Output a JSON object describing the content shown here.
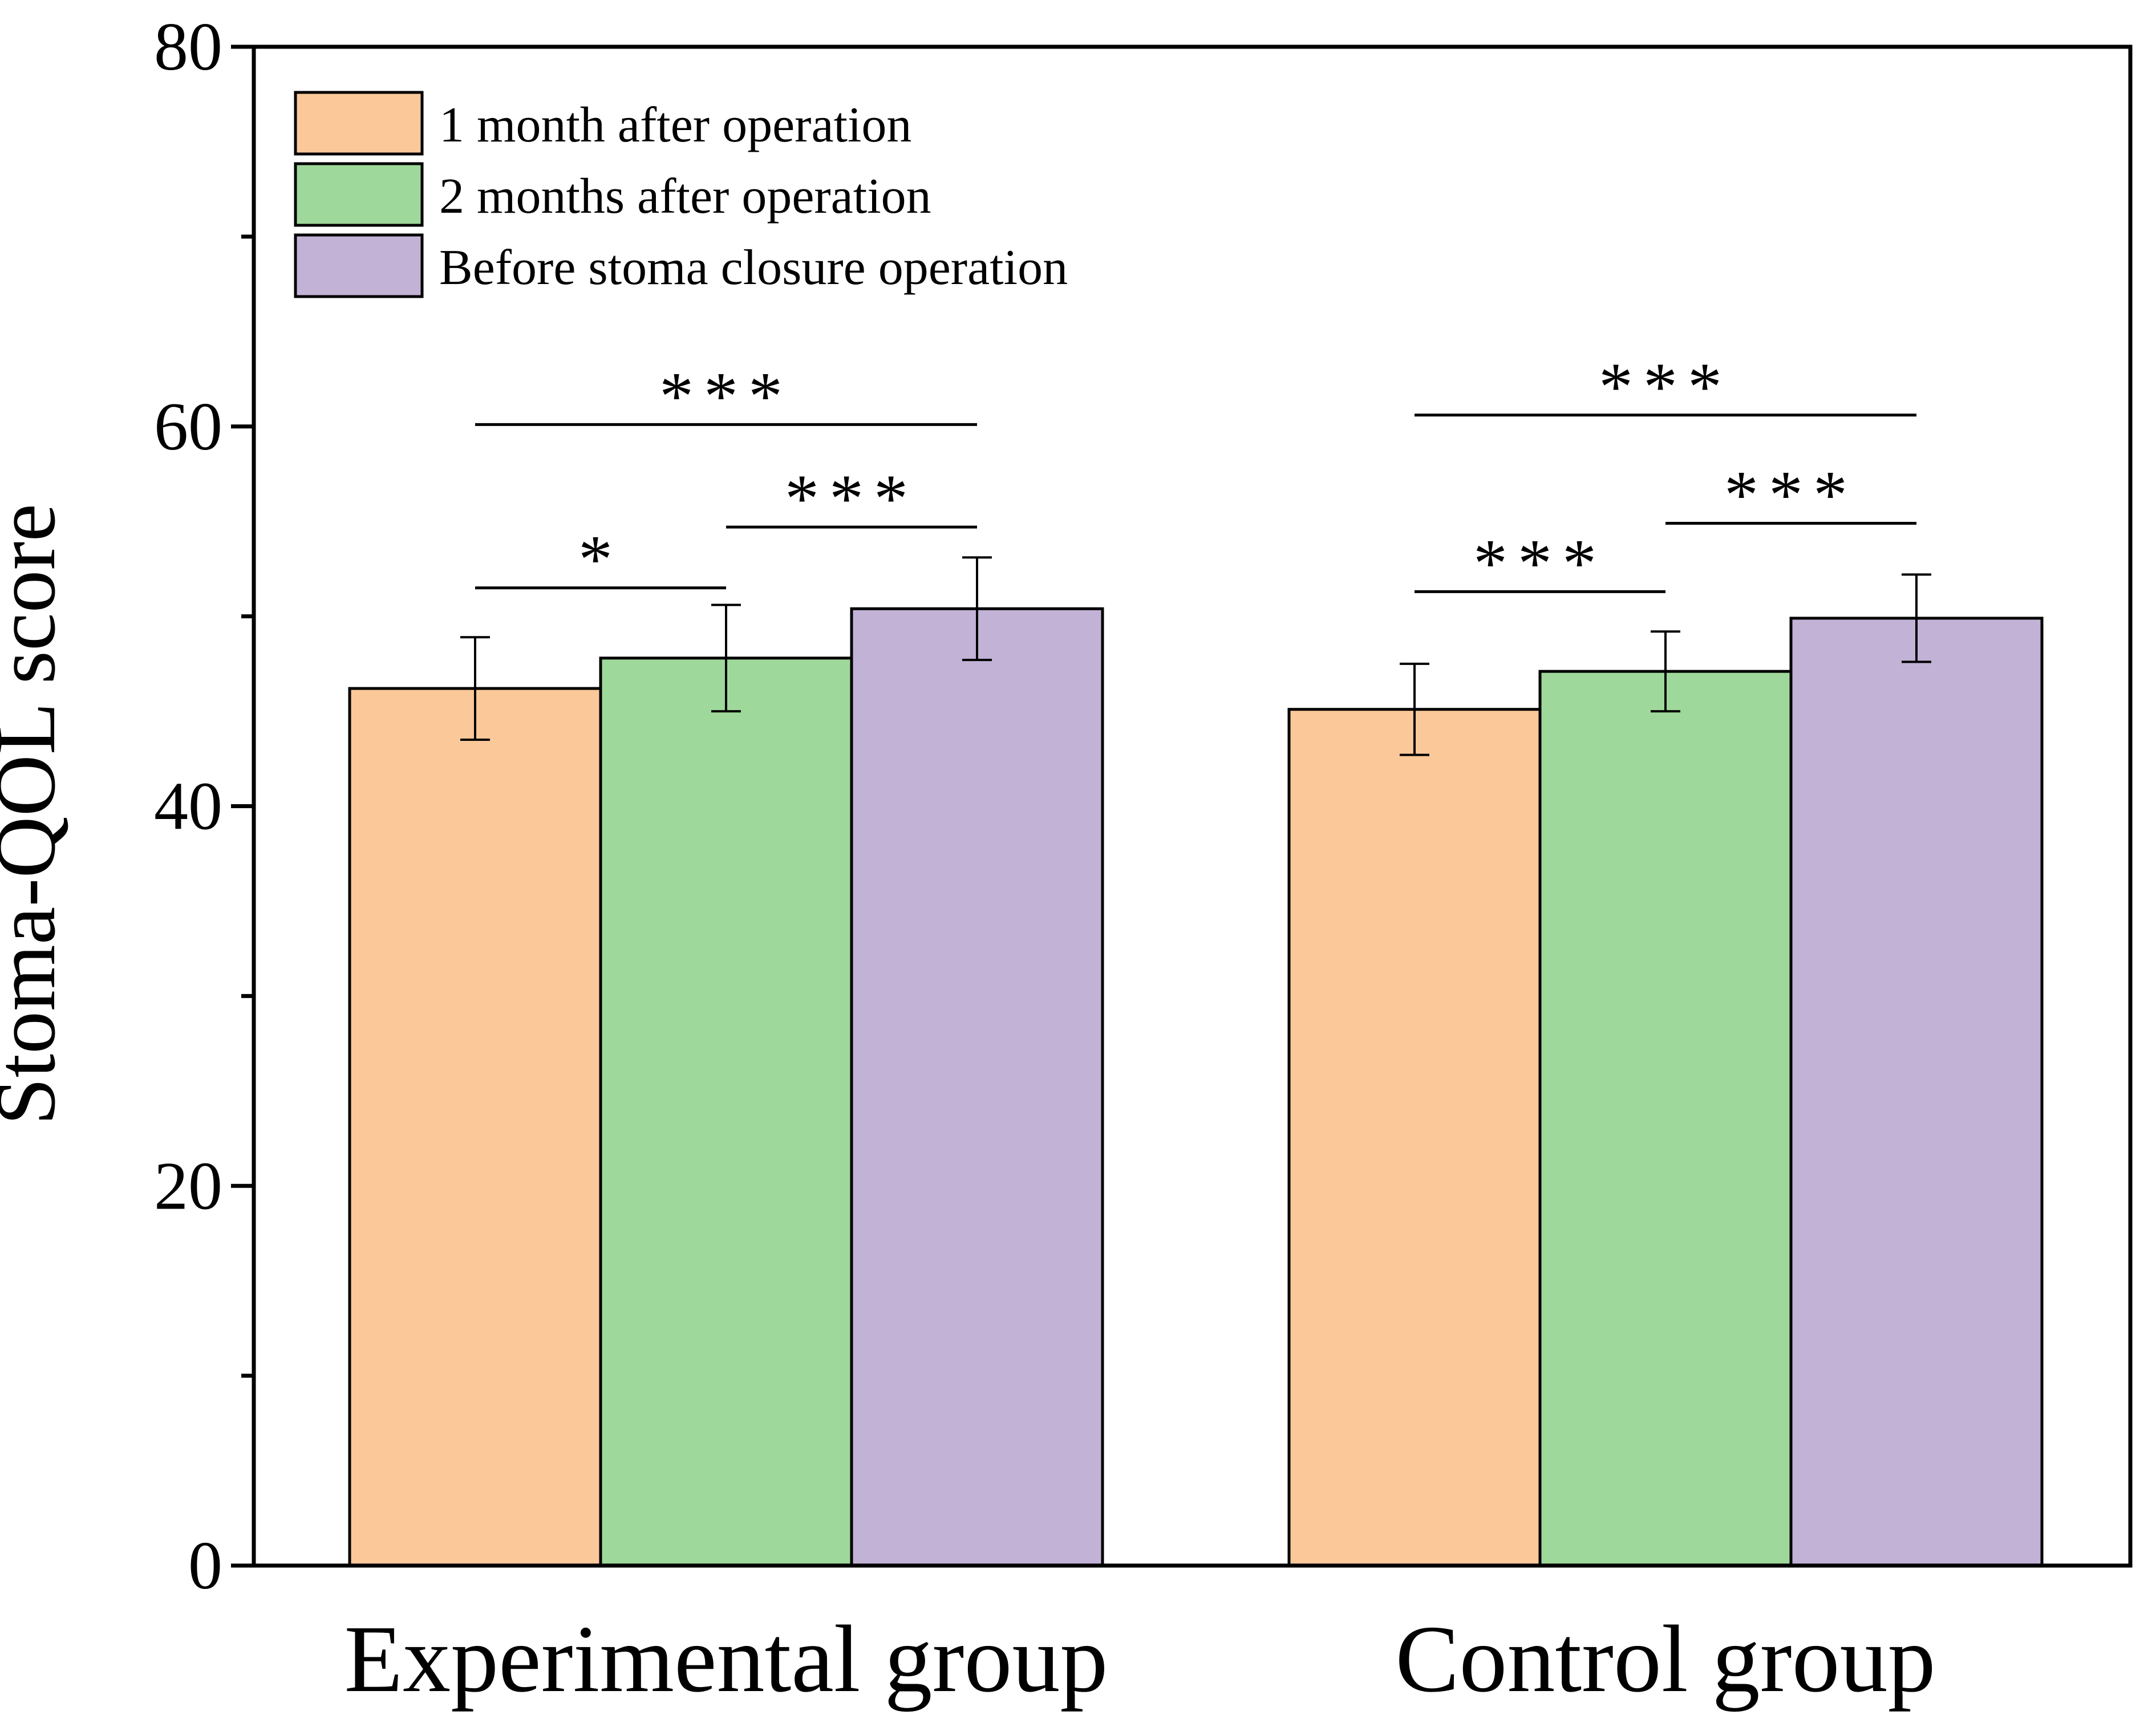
{
  "chart_data": {
    "type": "bar",
    "title": "",
    "xlabel": "",
    "ylabel": "Stoma-QOL score",
    "ylim": [
      0,
      80
    ],
    "yticks": [
      0,
      20,
      40,
      60,
      80
    ],
    "ytick_labels": [
      "0",
      "20",
      "40",
      "60",
      "80"
    ],
    "minor_yticks": [
      10,
      30,
      50,
      70
    ],
    "categories": [
      "Experimental group",
      "Control group"
    ],
    "series": [
      {
        "name": "1 month after operation",
        "color": "#FBC89A",
        "values": [
          46.2,
          45.1
        ],
        "errors": [
          2.7,
          2.4
        ]
      },
      {
        "name": "2 months after operation",
        "color": "#9ED89A",
        "values": [
          47.8,
          47.1
        ],
        "errors": [
          2.8,
          2.1
        ]
      },
      {
        "name": "Before stoma closure operation",
        "color": "#C2B2D6",
        "values": [
          50.4,
          49.9
        ],
        "errors": [
          2.7,
          2.3
        ]
      }
    ],
    "legend_position": "top-left",
    "significance": [
      {
        "group": 0,
        "from": 0,
        "to": 2,
        "level": 60.1,
        "label": "***"
      },
      {
        "group": 0,
        "from": 0,
        "to": 1,
        "level": 51.5,
        "label": "*"
      },
      {
        "group": 0,
        "from": 1,
        "to": 2,
        "level": 54.7,
        "label": "***"
      },
      {
        "group": 1,
        "from": 0,
        "to": 2,
        "level": 60.6,
        "label": "***"
      },
      {
        "group": 1,
        "from": 0,
        "to": 1,
        "level": 51.3,
        "label": "***"
      },
      {
        "group": 1,
        "from": 1,
        "to": 2,
        "level": 54.9,
        "label": "***"
      }
    ]
  }
}
